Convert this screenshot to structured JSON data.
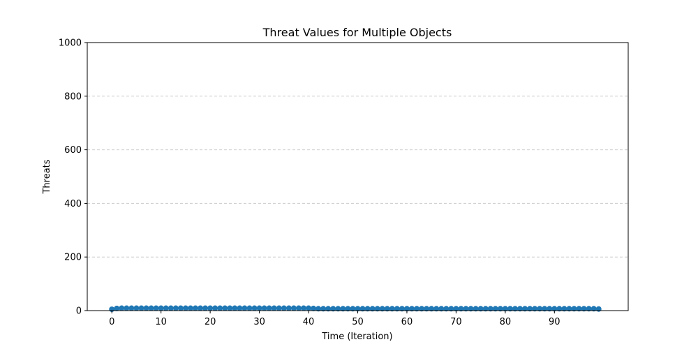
{
  "chart_data": {
    "type": "scatter",
    "title": "Threat Values for Multiple Objects",
    "xlabel": "Time (Iteration)",
    "ylabel": "Threats",
    "xlim": [
      -5,
      105
    ],
    "ylim": [
      0,
      1000
    ],
    "xticks": [
      0,
      10,
      20,
      30,
      40,
      50,
      60,
      70,
      80,
      90
    ],
    "yticks": [
      0,
      200,
      400,
      600,
      800,
      1000
    ],
    "grid": "y-dashed",
    "marker_color": "#1f77b4",
    "series": [
      {
        "x": [
          0,
          1,
          2,
          3,
          4,
          5,
          6,
          7,
          8,
          9,
          10,
          11,
          12,
          13,
          14,
          15,
          16,
          17,
          18,
          19,
          20,
          21,
          22,
          23,
          24,
          25,
          26,
          27,
          28,
          29,
          30,
          31,
          32,
          33,
          34,
          35,
          36,
          37,
          38,
          39,
          40,
          41,
          42,
          43,
          44,
          45,
          46,
          47,
          48,
          49,
          50,
          51,
          52,
          53,
          54,
          55,
          56,
          57,
          58,
          59,
          60,
          61,
          62,
          63,
          64,
          65,
          66,
          67,
          68,
          69,
          70,
          71,
          72,
          73,
          74,
          75,
          76,
          77,
          78,
          79,
          80,
          81,
          82,
          83,
          84,
          85,
          86,
          87,
          88,
          89,
          90,
          91,
          92,
          93,
          94,
          95,
          96,
          97,
          98,
          99
        ],
        "values": [
          5,
          8,
          9,
          9,
          9,
          9,
          9,
          9,
          9,
          9,
          9,
          9,
          9,
          9,
          9,
          9,
          9,
          9,
          9,
          9,
          9,
          9,
          9,
          9,
          9,
          9,
          9,
          9,
          9,
          9,
          9,
          9,
          9,
          9,
          9,
          9,
          9,
          9,
          9,
          9,
          9,
          8,
          7,
          7,
          7,
          7,
          7,
          7,
          7,
          7,
          7,
          7,
          7,
          7,
          7,
          7,
          7,
          7,
          7,
          7,
          7,
          7,
          7,
          7,
          7,
          7,
          7,
          7,
          7,
          7,
          7,
          7,
          7,
          7,
          7,
          7,
          7,
          7,
          7,
          7,
          7,
          7,
          7,
          7,
          7,
          7,
          7,
          7,
          7,
          7,
          7,
          7,
          7,
          7,
          7,
          7,
          7,
          7,
          7,
          6
        ]
      }
    ]
  }
}
